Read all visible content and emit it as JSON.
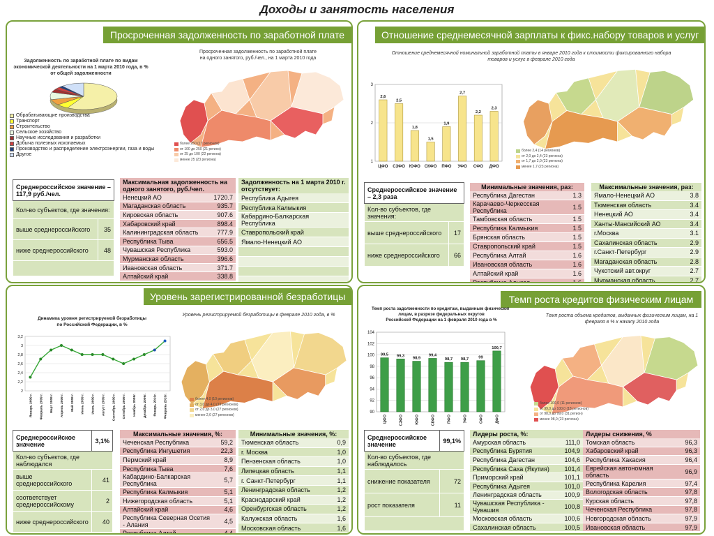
{
  "page_title": "Доходы и занятость населения",
  "panels": {
    "p1": {
      "title": "Просроченная задолженность по заработной плате",
      "pie_caption": "Задолженность по заработной плате по видам экономической деятельности на 1 марта 2010 года, в % от общей задолженности",
      "map_caption": "Просроченная задолженность по заработной плате на одного занятого, руб./чел., на 1 марта 2010 года",
      "map_legend": [
        "более 250 (17 регионов)",
        "от 100 до 250 (21 регион)",
        "от 25 до 100 (22 региона)",
        "менее 25 (23 региона)"
      ],
      "pie_legend": [
        {
          "label": "Обрабатывающие производства",
          "color": "#f5f0a8"
        },
        {
          "label": "Транспорт",
          "color": "#ffff33"
        },
        {
          "label": "Строительство",
          "color": "#f0a040"
        },
        {
          "label": "Сельское хозяйство",
          "color": "#e8f8e0"
        },
        {
          "label": "Научные исследования и разработки",
          "color": "#a03030"
        },
        {
          "label": "Добыча полезных ископаемых",
          "color": "#d04040"
        },
        {
          "label": "Производство и распределение электроэнергии, газа и воды",
          "color": "#204080"
        },
        {
          "label": "Другое",
          "color": "#d0e0f8"
        }
      ],
      "summary": {
        "header": "Среднероссийское значение –117,9 руб./чел.",
        "count_label": "Кол-во субъектов, где значения:",
        "above_label": "выше среднероссийского",
        "above_val": "35",
        "below_label": "ниже среднероссийского",
        "below_val": "48"
      },
      "max_header": "Максимальная задолженность на одного занятого, руб./чел.",
      "max_list": [
        {
          "name": "Ненецкий АО",
          "val": "1720.7"
        },
        {
          "name": "Магаданская область",
          "val": "935.7"
        },
        {
          "name": "Кировская область",
          "val": "907.6"
        },
        {
          "name": "Хабаровский край",
          "val": "898.4"
        },
        {
          "name": "Калининградская область",
          "val": "777.9"
        },
        {
          "name": "Республика Тыва",
          "val": "656.5"
        },
        {
          "name": "Чувашская Республика",
          "val": "593.0"
        },
        {
          "name": "Мурманская область",
          "val": "396.6"
        },
        {
          "name": "Ивановская область",
          "val": "371.7"
        },
        {
          "name": "Алтайский край",
          "val": "338.8"
        }
      ],
      "none_header": "Задолженность на 1 марта 2010 г. отсутствует:",
      "none_list": [
        "Республика Адыгея",
        "Республика Калмыкия",
        "Кабардино-Балкарская Республика",
        "Ставропольский край",
        "Ямало-Ненецкий АО",
        "",
        "",
        "",
        ""
      ]
    },
    "p2": {
      "title": "Отношение среднемесячной зарплаты к фикс.набору товаров и услуг",
      "caption": "Отношение среднемесячной номинальной заработной платы в январе 2010 года к стоимости фиксированного набора товаров и услуг в феврале 2010 года",
      "map_legend": [
        "более 2,4 (14 регионов)",
        "от 2,0 до 2,4 (23 региона)",
        "от 1,7 до 2,0 (23 региона)",
        "менее 1,7 (23 региона)"
      ],
      "summary": {
        "header": "Среднероссийское значение – 2,3 раза",
        "count_label": "Кол-во субъектов, где значения:",
        "above_label": "выше среднероссийского",
        "above_val": "17",
        "below_label": "ниже среднероссийского",
        "below_val": "66"
      },
      "min_header": "Минимальные значения, раз:",
      "min_list": [
        {
          "name": "Республика Дагестан",
          "val": "1.3"
        },
        {
          "name": "Карачаево-Черкесская Республика",
          "val": "1.5"
        },
        {
          "name": "Тамбовская область",
          "val": "1.5"
        },
        {
          "name": "Республика Калмыкия",
          "val": "1.5"
        },
        {
          "name": "Брянская область",
          "val": "1.5"
        },
        {
          "name": "Ставропольский край",
          "val": "1.5"
        },
        {
          "name": "Республика Алтай",
          "val": "1.6"
        },
        {
          "name": "Ивановская область",
          "val": "1.6"
        },
        {
          "name": "Алтайский край",
          "val": "1.6"
        },
        {
          "name": "Республика Адыгея",
          "val": "1.6"
        }
      ],
      "max_header": "Максимальные значения, раз:",
      "max_list": [
        {
          "name": "Ямало-Ненецкий АО",
          "val": "3.8"
        },
        {
          "name": "Тюменская область",
          "val": "3.4"
        },
        {
          "name": "Ненецкий АО",
          "val": "3.4"
        },
        {
          "name": "Ханты-Мансийский АО",
          "val": "3.4"
        },
        {
          "name": "г.Москва",
          "val": "3.1"
        },
        {
          "name": "Сахалинская область",
          "val": "2.9"
        },
        {
          "name": "г.Санкт-Петербург",
          "val": "2.9"
        },
        {
          "name": "Магаданская область",
          "val": "2.8"
        },
        {
          "name": "Чукотский авт.округ",
          "val": "2.7"
        },
        {
          "name": "Мурманская область",
          "val": "2.7"
        }
      ]
    },
    "p3": {
      "title": "Уровень зарегистрированной безработицы",
      "map_caption": "Уровень регистрируемой безработицы в феврале 2010 года, в %",
      "map_legend": [
        "более 4,0 (10 регионов)",
        "от 3,0 до 4,0 (19 регионов)",
        "от 2,0 до 3,0 (27 регионов)",
        "менее 2,0 (27 регионов)"
      ],
      "summary": {
        "header": "Среднероссийское значение",
        "header_val": "3,1%",
        "count_label": "Кол-во субъектов, где наблюдался",
        "above_label": "выше среднероссийского",
        "above_val": "41",
        "eq_label": "соответствует среднероссийскому",
        "eq_val": "2",
        "below_label": "ниже среднероссийского",
        "below_val": "40"
      },
      "max_header": "Максимальные значения, %:",
      "max_list": [
        {
          "name": "Чеченская Республика",
          "val": "59,2"
        },
        {
          "name": "Республика Ингушетия",
          "val": "22,3"
        },
        {
          "name": "Пермский край",
          "val": "8,9"
        },
        {
          "name": "Республика Тыва",
          "val": "7,6"
        },
        {
          "name": "Кабардино-Балкарская Республика",
          "val": "5,7"
        },
        {
          "name": "Республика Калмыкия",
          "val": "5,1"
        },
        {
          "name": "Нижегородская область",
          "val": "5,1"
        },
        {
          "name": "Алтайский край",
          "val": "4,6"
        },
        {
          "name": "Республика Северная Осетия - Алания",
          "val": "4,5"
        },
        {
          "name": "Республика Алтай",
          "val": "4,4"
        }
      ],
      "min_header": "Минимальные значения, %:",
      "min_list": [
        {
          "name": "Тюменская область",
          "val": "0,9"
        },
        {
          "name": "г. Москва",
          "val": "1,0"
        },
        {
          "name": "Пензенская область",
          "val": "1,0"
        },
        {
          "name": "Липецкая область",
          "val": "1,1"
        },
        {
          "name": "г. Санкт-Петербург",
          "val": "1,1"
        },
        {
          "name": "Ленинградская область",
          "val": "1,2"
        },
        {
          "name": "Краснодарский край",
          "val": "1,2"
        },
        {
          "name": "Оренбургская область",
          "val": "1,2"
        },
        {
          "name": "Калужская область",
          "val": "1,6"
        },
        {
          "name": "Московская область",
          "val": "1,6"
        }
      ]
    },
    "p4": {
      "title": "Темп роста кредитов физическим лицам",
      "map_caption": "Темп роста объема кредитов, выданных физическим лицам, на 1 февраля в % к началу 2010 года",
      "map_legend": [
        "более 100,0 (11 регионов)",
        "от 99,0 до 100,0 (18 регионов)",
        "от 98,0 до 99,0 (31 регион)",
        "менее 98,0 (23 региона)"
      ],
      "summary": {
        "header": "Среднероссийское значение",
        "header_val": "99,1%",
        "count_label": "Кол-во субъектов, где наблюдалось",
        "dec_label": "снижение показателя",
        "dec_val": "72",
        "inc_label": "рост показателя",
        "inc_val": "11"
      },
      "grow_header": "Лидеры роста, %:",
      "grow_list": [
        {
          "name": "Амурская область",
          "val": "111,0"
        },
        {
          "name": "Республика Бурятия",
          "val": "104,9"
        },
        {
          "name": "Республика Дагестан",
          "val": "104,6"
        },
        {
          "name": "Республика Саха (Якутия)",
          "val": "101,4"
        },
        {
          "name": "Приморский край",
          "val": "101,1"
        },
        {
          "name": "Республика Адыгея",
          "val": "101,0"
        },
        {
          "name": "Ленинградская область",
          "val": "100,9"
        },
        {
          "name": "Чувашская Республика - Чувашия",
          "val": "100,8"
        },
        {
          "name": "Московская область",
          "val": "100,6"
        },
        {
          "name": "Сахалинская область",
          "val": "100,5"
        }
      ],
      "fall_header": "Лидеры снижения, %",
      "fall_list": [
        {
          "name": "Томская область",
          "val": "96,3"
        },
        {
          "name": "Хабаровский край",
          "val": "96,3"
        },
        {
          "name": "Республика Хакасия",
          "val": "96,4"
        },
        {
          "name": "Еврейская автономная область",
          "val": "96,9"
        },
        {
          "name": "Республика Карелия",
          "val": "97,4"
        },
        {
          "name": "Вологодская область",
          "val": "97,8"
        },
        {
          "name": "Курская область",
          "val": "97,8"
        },
        {
          "name": "Чеченская Республика",
          "val": "97,8"
        },
        {
          "name": "Новгородская область",
          "val": "97,9"
        },
        {
          "name": "Ивановская область",
          "val": "97,9"
        }
      ]
    }
  },
  "chart_data": [
    {
      "type": "pie",
      "title": "Задолженность по заработной плате по видам экономической деятельности на 1 марта 2010 года, в % от общей задолженности",
      "categories": [
        "Обрабатывающие производства",
        "Транспорт",
        "Строительство",
        "Сельское хозяйство",
        "Научные исследования и разработки",
        "Добыча полезных ископаемых",
        "Производство и распределение электроэнергии, газа и воды",
        "Другое"
      ],
      "values": [
        58,
        6,
        7,
        9,
        4,
        3,
        2,
        11
      ]
    },
    {
      "type": "bar",
      "title": "Отношение среднемесячной номинальной заработной платы в январе 2010 года к стоимости фиксированного набора товаров и услуг в феврале 2010 года",
      "categories": [
        "ЦФО",
        "СЗФО",
        "ЮФО",
        "СКФО",
        "ПФО",
        "УФО",
        "СФО",
        "ДФО"
      ],
      "values": [
        2.6,
        2.5,
        1.8,
        1.5,
        1.9,
        2.7,
        2.2,
        2.3
      ],
      "labels": [
        "2,6",
        "2,5",
        "1,8",
        "1,5",
        "1,9",
        "2,7",
        "2,2",
        "2,3"
      ],
      "yticks": [
        "1",
        "2",
        "3"
      ],
      "ylim": [
        1,
        3
      ]
    },
    {
      "type": "line",
      "title": "Динамика уровня регистрируемой безработицы по Российской Федерации, в %",
      "categories": [
        "Январь 2009 г.",
        "Февраль 2009 г.",
        "Март 2009 г.",
        "Апрель 2009 г.",
        "Май 2009 г.",
        "Июнь 2009 г.",
        "Июль 2009 г.",
        "Август 2009 г.",
        "Сентябрь 2009 г.",
        "Октябрь 2009 г.",
        "Ноябрь 2009г.",
        "Декабрь 2009г.",
        "Январь 2010г.",
        "Февраль 2010г."
      ],
      "values": [
        2.3,
        2.7,
        2.9,
        3.0,
        2.9,
        2.8,
        2.8,
        2.8,
        2.7,
        2.6,
        2.7,
        2.8,
        2.9,
        3.1
      ],
      "yticks": [
        "2",
        "2,2",
        "2,4",
        "2,6",
        "2,8",
        "3",
        "3,2"
      ],
      "ylim": [
        2,
        3.2
      ]
    },
    {
      "type": "bar",
      "title": "Темп роста задолженности по кредитам, выданным физическим лицам, в разрезе федеральных округов Российской Федерации на 1 февраля 2010 года в %",
      "categories": [
        "ЦФО",
        "СЗФО",
        "ЮФО",
        "СКФО",
        "ПФО",
        "УФО",
        "СФО",
        "ДФО"
      ],
      "values": [
        99.5,
        99.3,
        98.9,
        99.4,
        98.7,
        98.7,
        99.0,
        100.7
      ],
      "labels": [
        "99,5",
        "99,3",
        "98,9",
        "99,4",
        "98,7",
        "98,7",
        "99",
        "100,7"
      ],
      "yticks": [
        "90",
        "92",
        "94",
        "96",
        "98",
        "100",
        "102",
        "104"
      ],
      "ylim": [
        90,
        104
      ]
    }
  ],
  "colors": {
    "panel_border": "#7aa23c",
    "title_bar": "#76a035",
    "bar_yellow": "#f7e48c",
    "bar_green": "#3e9e48",
    "line_green": "#3aa83a",
    "pink": "#e6b9b8",
    "green": "#d7e4bd"
  }
}
